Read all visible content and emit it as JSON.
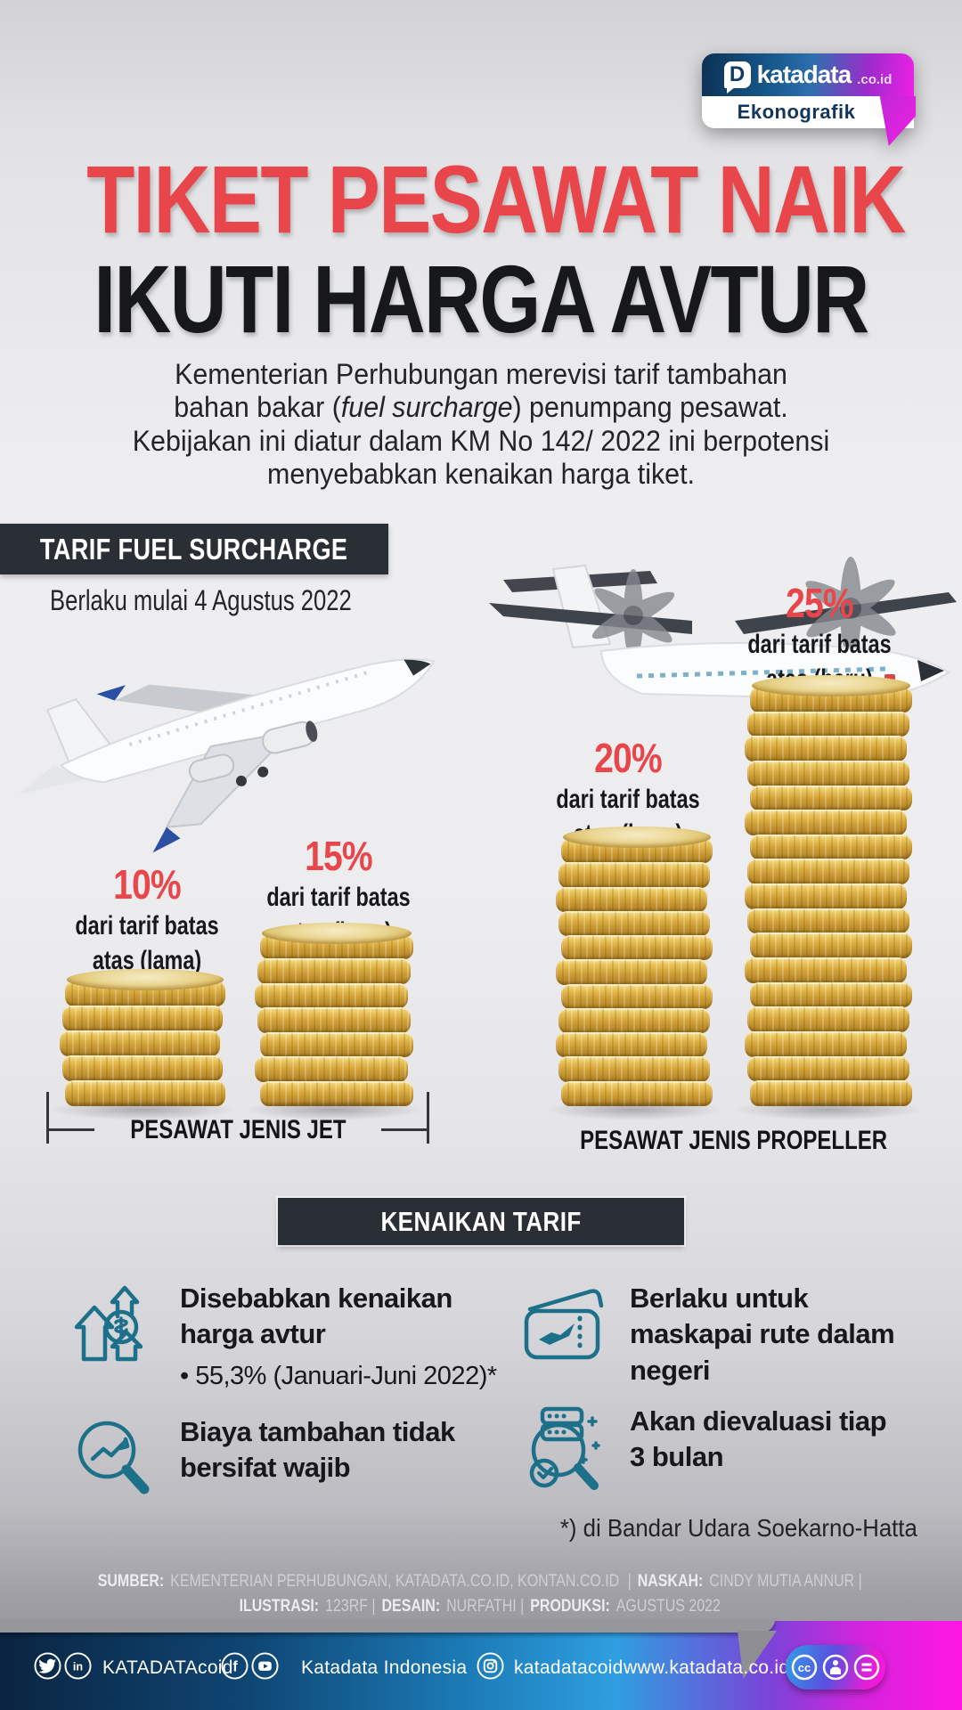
{
  "brand": {
    "d": "D",
    "name": "katadata",
    "tld": ".co.id",
    "sub": "Ekonografik"
  },
  "title": {
    "line1": "TIKET PESAWAT NAIK",
    "line2": "IKUTI HARGA AVTUR"
  },
  "intro": {
    "line1": "Kementerian Perhubungan merevisi tarif tambahan",
    "line2_pre": "bahan bakar (",
    "line2_italic": "fuel surcharge",
    "line2_post": ") penumpang pesawat.",
    "line3": "Kebijakan ini diatur dalam KM No 142/ 2022 ini berpotensi",
    "line4": "menyebabkan kenaikan harga tiket."
  },
  "section_fuel": {
    "header": "TARIF FUEL SURCHARGE",
    "effective": "Berlaku mulai 4 Agustus 2022"
  },
  "chart_data": {
    "type": "bar",
    "title": "TARIF FUEL SURCHARGE",
    "subtitle": "Berlaku mulai 4 Agustus 2022",
    "unit": "persen dari tarif batas atas",
    "categories": [
      "Pesawat jet - tarif lama",
      "Pesawat jet - tarif baru",
      "Pesawat propeller - tarif lama",
      "Pesawat propeller - tarif baru"
    ],
    "values": [
      10,
      15,
      20,
      25
    ],
    "bars": [
      {
        "pct": "10%",
        "desc_line1": "dari tarif batas",
        "desc_line2": "atas (lama)",
        "value": 10,
        "coins": 5,
        "group": "PESAWAT JENIS JET"
      },
      {
        "pct": "15%",
        "desc_line1": "dari tarif batas",
        "desc_line2": "atas (baru)",
        "value": 15,
        "coins": 7,
        "group": "PESAWAT JENIS JET"
      },
      {
        "pct": "20%",
        "desc_line1": "dari tarif batas",
        "desc_line2": "atas (lama)",
        "value": 20,
        "coins": 11,
        "group": "PESAWAT JENIS PROPELLER"
      },
      {
        "pct": "25%",
        "desc_line1": "dari tarif batas",
        "desc_line2": "atas (baru)",
        "value": 25,
        "coins": 17,
        "group": "PESAWAT JENIS PROPELLER"
      }
    ],
    "groups": [
      {
        "label": "PESAWAT JENIS JET"
      },
      {
        "label": "PESAWAT JENIS PROPELLER"
      }
    ]
  },
  "section_kenaikan": {
    "header": "KENAIKAN TARIF",
    "items": [
      {
        "icon": "avtur-price-rise-icon",
        "text": "Disebabkan kenaikan harga avtur",
        "bullet": "• 55,3% (Januari-Juni 2022)*"
      },
      {
        "icon": "flight-ticket-icon",
        "text": "Berlaku untuk maskapai rute dalam negeri"
      },
      {
        "icon": "trend-search-icon",
        "text": "Biaya tambahan tidak bersifat wajib"
      },
      {
        "icon": "evaluation-search-icon",
        "text": "Akan dievaluasi tiap 3 bulan"
      }
    ]
  },
  "footnote": "*) di Bandar Udara Soekarno-Hatta",
  "credits": {
    "l1_label1": "SUMBER:",
    "l1_text1": "KEMENTERIAN PERHUBUNGAN, KATADATA.CO.ID, KONTAN.CO.ID",
    "l1_sep": "|",
    "l1_label2": "NASKAH:",
    "l1_text2": "CINDY MUTIA ANNUR |",
    "l2_label1": "ILUSTRASI:",
    "l2_text1": "123RF |",
    "l2_label2": "DESAIN:",
    "l2_text2": "NURFATHI |",
    "l2_label3": "PRODUKSI:",
    "l2_text3": "AGUSTUS 2022"
  },
  "footer": {
    "twitter_handle": "KATADATAcoid",
    "facebook_name": "Katadata Indonesia",
    "instagram_handle": "katadatacoid",
    "website": "www.katadata.co.id"
  },
  "colors": {
    "accent_red": "#e8464b",
    "teal_icon": "#1d7089",
    "banner_dark": "#2a2e35",
    "footer_navy": "#0a2440",
    "brand_magenta": "#ee20e6",
    "coin_gold": "#d8a93e"
  }
}
